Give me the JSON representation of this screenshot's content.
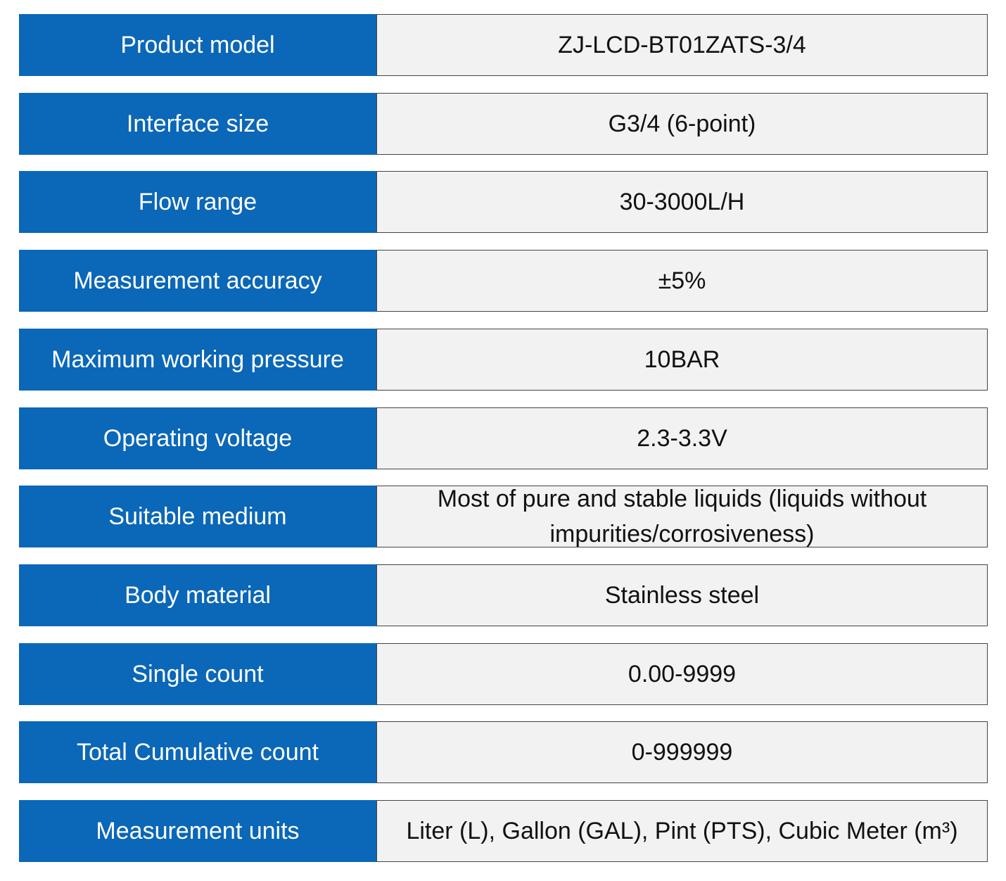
{
  "table": {
    "rows": [
      [
        "Product model",
        "ZJ-LCD-BT01ZATS-3/4"
      ],
      [
        "Interface size",
        "G3/4 (6-point)"
      ],
      [
        "Flow range",
        "30-3000L/H"
      ],
      [
        "Measurement accuracy",
        "±5%"
      ],
      [
        "Maximum working pressure",
        "10BAR"
      ],
      [
        "Operating voltage",
        "2.3-3.3V"
      ],
      [
        "Suitable medium",
        "Most of pure and stable liquids (liquids without impurities/corrosiveness)"
      ],
      [
        "Body material",
        "Stainless steel"
      ],
      [
        "Single count",
        "0.00-9999"
      ],
      [
        "Total Cumulative count",
        "0-999999"
      ],
      [
        "Measurement units",
        "Liter (L), Gallon (GAL), Pint (PTS), Cubic Meter (m³)"
      ]
    ]
  }
}
